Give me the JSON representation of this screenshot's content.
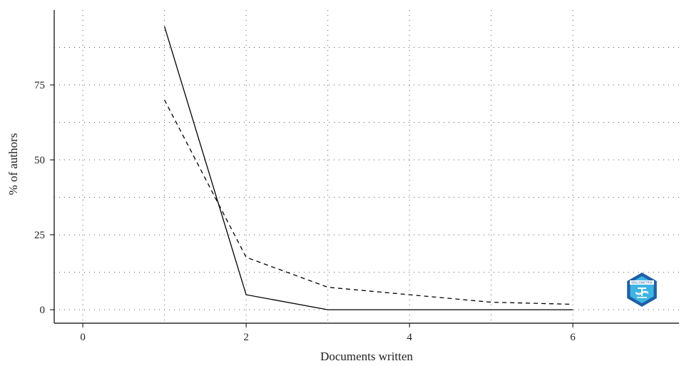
{
  "chart_data": {
    "type": "line",
    "xlabel": "Documents written",
    "ylabel": "% of authors",
    "xlim": [
      -0.35,
      7.3
    ],
    "ylim": [
      -4.5,
      100
    ],
    "x_ticks": [
      0,
      2,
      4,
      6
    ],
    "x_tick_labels": [
      "0",
      "2",
      "4",
      "6"
    ],
    "y_ticks": [
      0,
      25,
      50,
      75
    ],
    "y_tick_labels": [
      "0",
      "25",
      "50",
      "75"
    ],
    "x_grid": [
      0,
      1,
      2,
      3,
      4,
      5,
      6
    ],
    "y_grid": [
      0,
      12.5,
      25,
      37.5,
      50,
      62.5,
      75,
      87.5
    ],
    "grid": true,
    "legend": "none",
    "series": [
      {
        "x": [
          1,
          2,
          3,
          4,
          5,
          6
        ],
        "y": [
          94.5,
          5,
          0,
          0,
          0,
          0
        ],
        "style": "solid",
        "color": "#000000"
      },
      {
        "x": [
          1,
          2,
          3,
          4,
          5,
          6
        ],
        "y": [
          70,
          17.5,
          7.5,
          5,
          2.5,
          1.8
        ],
        "style": "dashed",
        "color": "#000000"
      }
    ]
  },
  "logo": {
    "icon": "bibliometrix-logo-icon",
    "text": "BIBLIOMETRIX",
    "colors": [
      "#1f5fa8",
      "#3db4e6",
      "#ffffff"
    ]
  }
}
